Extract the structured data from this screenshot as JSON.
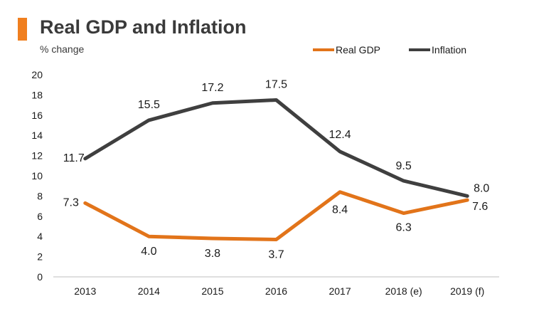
{
  "header": {
    "title": "Real GDP and Inflation",
    "subtitle": "% change"
  },
  "colors": {
    "accent": "#F07F1F",
    "real_gdp": "#E2741A",
    "inflation": "#3F3F3F"
  },
  "chart_data": {
    "type": "line",
    "title": "Real GDP and Inflation",
    "subtitle": "% change",
    "xlabel": "",
    "ylabel": "",
    "categories": [
      "2013",
      "2014",
      "2015",
      "2016",
      "2017",
      "2018 (e)",
      "2019 (f)"
    ],
    "ylim": [
      0,
      20
    ],
    "yticks": [
      0,
      2,
      4,
      6,
      8,
      10,
      12,
      14,
      16,
      18,
      20
    ],
    "grid": false,
    "legend_position": "top-right",
    "series": [
      {
        "name": "Real GDP",
        "color": "#E2741A",
        "values": [
          7.3,
          4.0,
          3.8,
          3.7,
          8.4,
          6.3,
          7.6
        ],
        "labels": [
          "7.3",
          "4.0",
          "3.8",
          "3.7",
          "8.4",
          "6.3",
          "7.6"
        ]
      },
      {
        "name": "Inflation",
        "color": "#3F3F3F",
        "values": [
          11.7,
          15.5,
          17.2,
          17.5,
          12.4,
          9.5,
          8.0
        ],
        "labels": [
          "11.7",
          "15.5",
          "17.2",
          "17.5",
          "12.4",
          "9.5",
          "8.0"
        ]
      }
    ]
  }
}
